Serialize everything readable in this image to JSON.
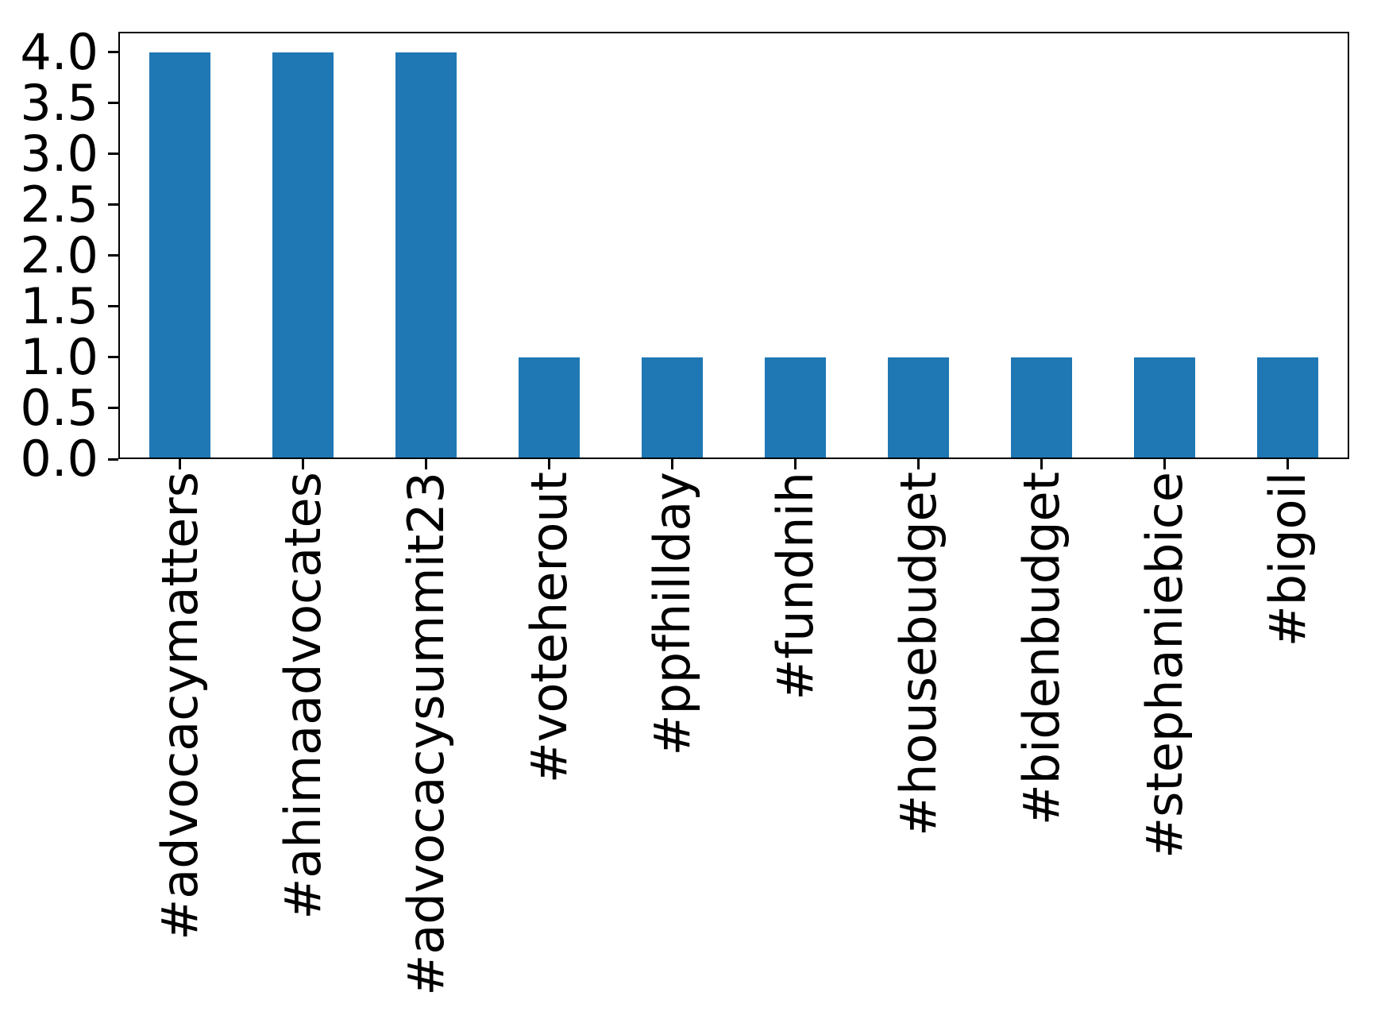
{
  "chart_data": {
    "type": "bar",
    "title": "",
    "xlabel": "",
    "ylabel": "",
    "categories": [
      "#advocacymatters",
      "#ahimaadvocates",
      "#advocacysummit23",
      "#voteherout",
      "#ppfhillday",
      "#fundnih",
      "#housebudget",
      "#bidenbudget",
      "#stephaniebice",
      "#bigoil"
    ],
    "values": [
      4,
      4,
      4,
      1,
      1,
      1,
      1,
      1,
      1,
      1
    ],
    "ylim": [
      0,
      4.2
    ],
    "yticks": [
      0.0,
      0.5,
      1.0,
      1.5,
      2.0,
      2.5,
      3.0,
      3.5,
      4.0
    ],
    "ytick_labels": [
      "0.0",
      "0.5",
      "1.0",
      "1.5",
      "2.0",
      "2.5",
      "3.0",
      "3.5",
      "4.0"
    ],
    "x_tick_rotation_deg": 90,
    "bar_color": "#1f77b4",
    "axis_color": "#000000",
    "grid": false,
    "legend": null
  }
}
